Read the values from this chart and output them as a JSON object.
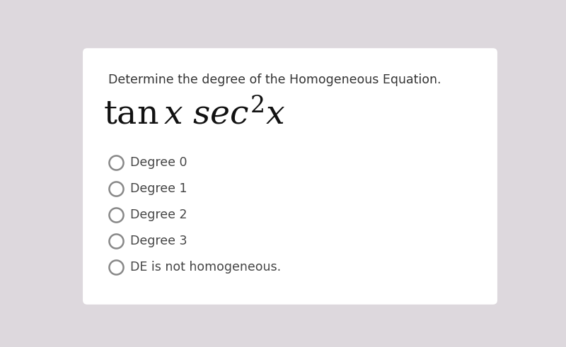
{
  "background_outer": "#ddd8dd",
  "background_card": "#ffffff",
  "title_text": "Determine the degree of the Homogeneous Equation.",
  "title_fontsize": 12.5,
  "title_color": "#333333",
  "equation_latex": "$\\tan x\\ \\mathit{sec}^{2}x$",
  "equation_fontsize": 34,
  "equation_color": "#111111",
  "options": [
    "Degree 0",
    "Degree 1",
    "Degree 2",
    "Degree 3",
    "DE is not homogeneous."
  ],
  "option_fontsize": 12.5,
  "option_color": "#444444",
  "circle_edge_color": "#888888",
  "circle_face_color": "#ffffff",
  "circle_linewidth": 1.8,
  "circle_diameter_pts": 18
}
